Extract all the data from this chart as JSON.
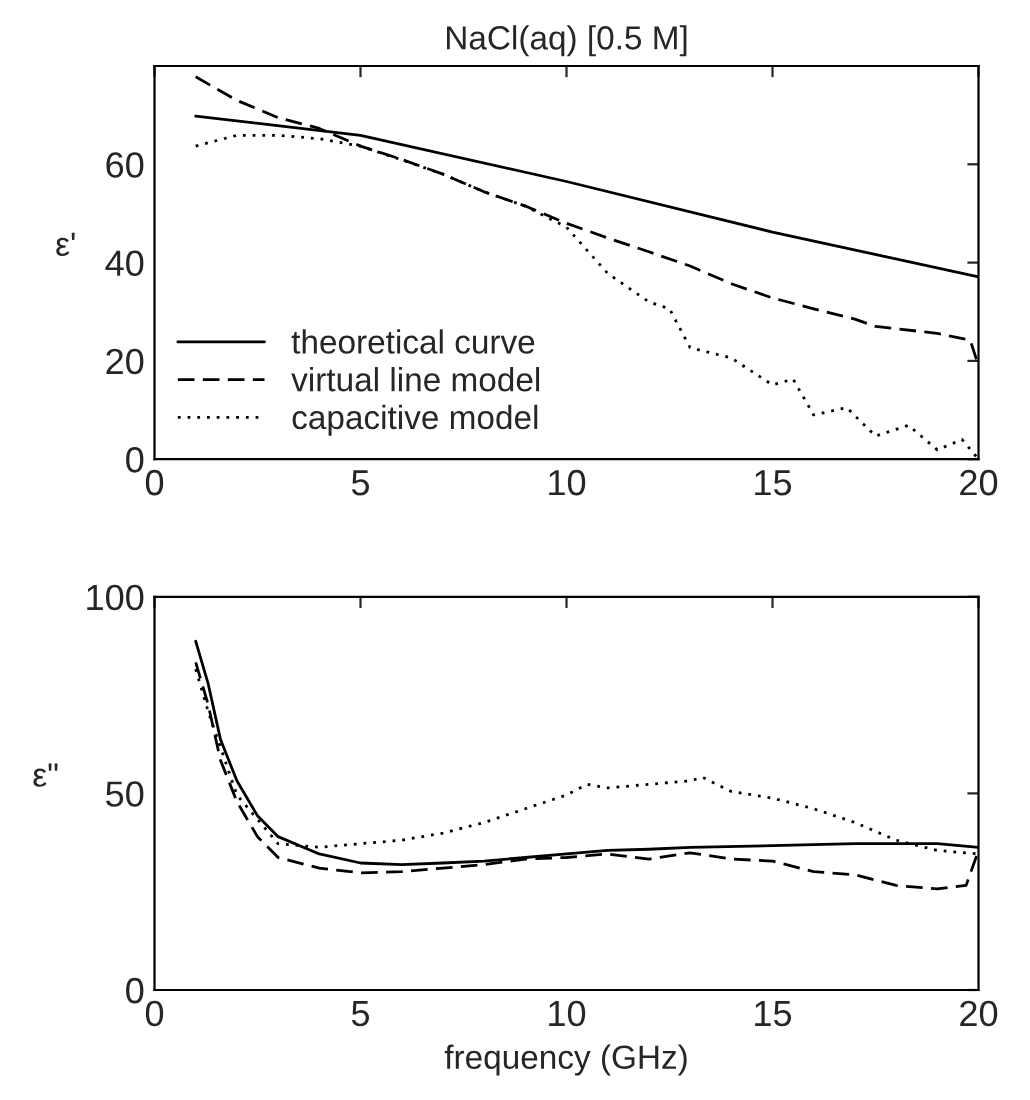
{
  "chart_data": [
    {
      "type": "line",
      "title": "NaCl(aq) [0.5 M]",
      "ylabel": "ε'",
      "xlim": [
        0,
        20
      ],
      "xticks": [
        0,
        5,
        10,
        15,
        20
      ],
      "ylim": [
        0,
        80
      ],
      "yticks": [
        0,
        20,
        40,
        60
      ],
      "grid": false,
      "legend": "lower left",
      "marker": "none",
      "series": [
        {
          "name": "theoretical curve",
          "color": "#000000",
          "line_style": "solid",
          "x": [
            1,
            5,
            10,
            15,
            20
          ],
          "values": [
            69.8,
            65.9,
            56.5,
            46.2,
            37.1
          ]
        },
        {
          "name": "virtual line model",
          "color": "#000000",
          "line_style": "dashed",
          "x": [
            1,
            2,
            3,
            4,
            5,
            6,
            7,
            8,
            9,
            10,
            11,
            12,
            13,
            14,
            15,
            16,
            17,
            17.5,
            19,
            19.8,
            20
          ],
          "values": [
            77.8,
            73,
            69.5,
            67.3,
            63.7,
            61,
            58,
            54.4,
            51.5,
            48,
            45,
            42.2,
            39.3,
            35.7,
            32.8,
            30.6,
            28.5,
            27,
            25.6,
            24.2,
            19
          ]
        },
        {
          "name": "capacitive model",
          "color": "#000000",
          "line_style": "dotted",
          "x": [
            1,
            2,
            3,
            4,
            5,
            6,
            7,
            8,
            9,
            10,
            11,
            12,
            12.5,
            13,
            14,
            15,
            15.5,
            16,
            16.8,
            17.5,
            18.3,
            19,
            19.6,
            20
          ],
          "values": [
            63.7,
            65.9,
            65.9,
            65.2,
            63.7,
            60.9,
            58,
            54.4,
            51.5,
            47.2,
            37.8,
            32,
            30.6,
            22.7,
            20.6,
            15.1,
            16.3,
            9,
            10.5,
            4.7,
            6.9,
            1.9,
            4,
            0
          ]
        }
      ]
    },
    {
      "type": "line",
      "xlabel": "frequency (GHz)",
      "ylabel": "ε\"",
      "xlim": [
        0,
        20
      ],
      "xticks": [
        0,
        5,
        10,
        15,
        20
      ],
      "ylim": [
        0,
        100
      ],
      "yticks": [
        0,
        50,
        100
      ],
      "grid": false,
      "marker": "none",
      "series": [
        {
          "color": "#000000",
          "line_style": "solid",
          "x": [
            1,
            1.3,
            1.6,
            2,
            2.5,
            3,
            4,
            5,
            6,
            7,
            8,
            9,
            10,
            11,
            12,
            13,
            15,
            17,
            19,
            20
          ],
          "values": [
            88.7,
            78,
            63.8,
            53.2,
            44.3,
            39,
            34.6,
            32.3,
            31.9,
            32.3,
            32.8,
            33.7,
            34.6,
            35.5,
            35.8,
            36.3,
            36.7,
            37.2,
            37.2,
            36.3
          ]
        },
        {
          "color": "#000000",
          "line_style": "dashed",
          "x": [
            1,
            1.3,
            1.6,
            2,
            2.5,
            3,
            4,
            5,
            6,
            7,
            8,
            9,
            10,
            11,
            12,
            13,
            14,
            15,
            16,
            17,
            18,
            19,
            19.7,
            20
          ],
          "values": [
            83.3,
            72.7,
            58.5,
            47.9,
            39,
            33.7,
            31,
            29.8,
            30.1,
            31,
            31.9,
            33.3,
            33.7,
            34.6,
            33.3,
            34.9,
            33.3,
            32.8,
            30.1,
            29.3,
            26.6,
            25.7,
            26.6,
            35.5
          ]
        },
        {
          "color": "#000000",
          "line_style": "dotted",
          "x": [
            1,
            1.3,
            2,
            3,
            4,
            5,
            6,
            7,
            8,
            9,
            10,
            10.5,
            11,
            12,
            13,
            13.3,
            14,
            15,
            16,
            17,
            18,
            19,
            20
          ],
          "values": [
            81.6,
            70.9,
            49.6,
            37.2,
            36.3,
            37.2,
            38.1,
            39.9,
            42.6,
            46.1,
            49.6,
            52.3,
            51.4,
            52.3,
            53.2,
            54.1,
            50.5,
            48.8,
            46.1,
            42.6,
            38.1,
            35.5,
            34.6
          ]
        }
      ]
    }
  ]
}
